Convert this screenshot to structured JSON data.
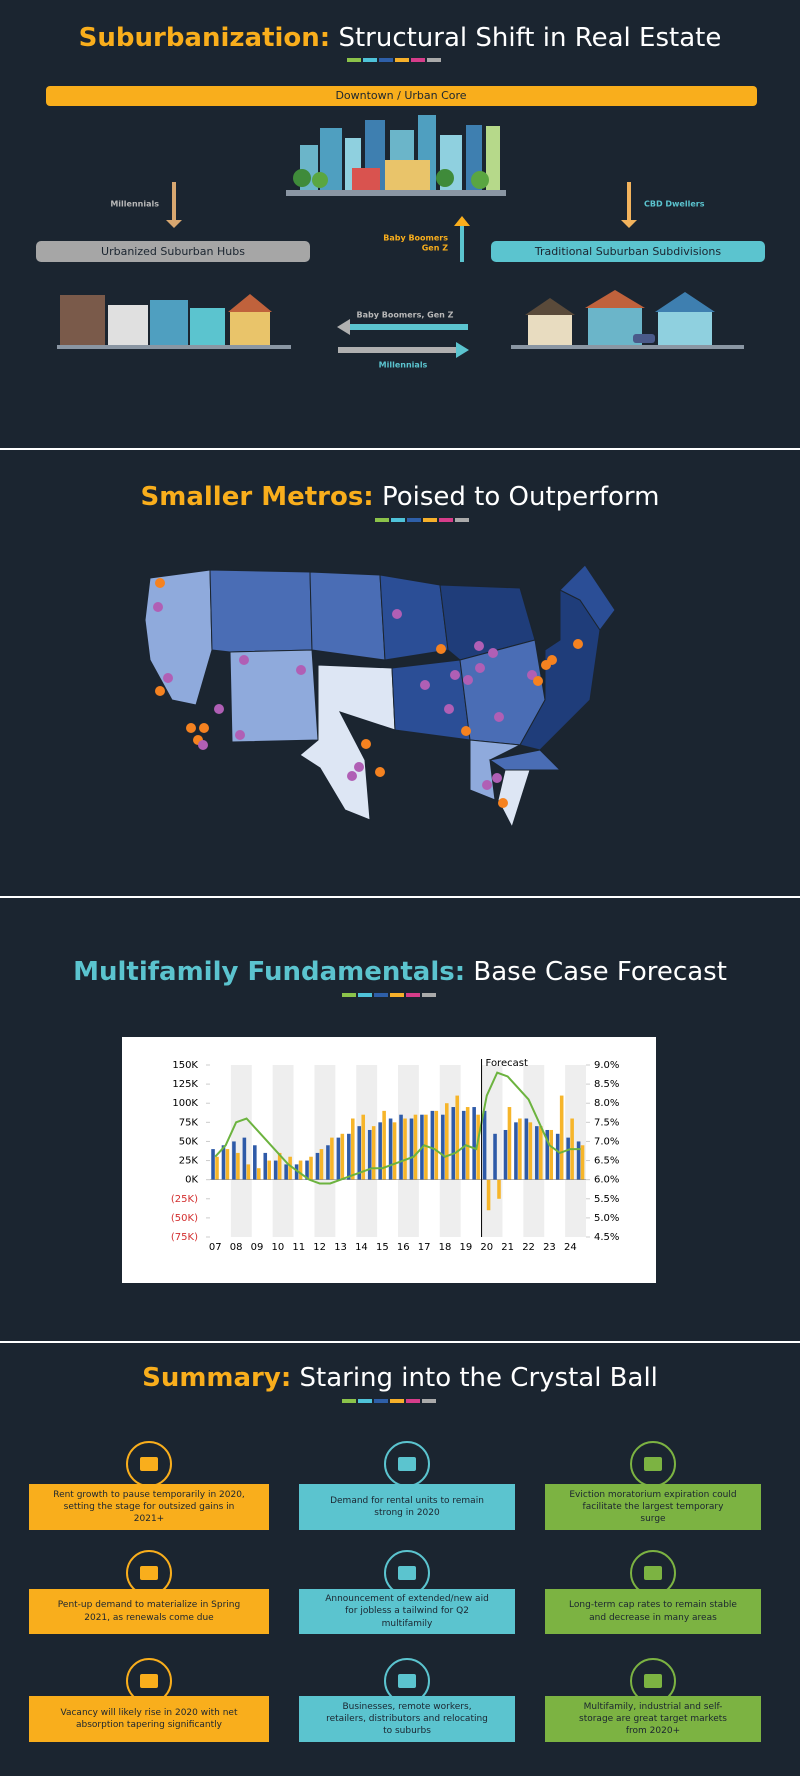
{
  "suburbanization": {
    "title_highlight": "Suburbanization:",
    "title_rest": "Structural Shift in Real Estate",
    "urban_core": "Downtown / Urban Core",
    "hubs": "Urbanized Suburban Hubs",
    "subdivisions": "Traditional Suburban Subdivisions",
    "flow_millennials_left": "Millennials",
    "flow_cbd": "CBD Dwellers",
    "flow_boomers": "Baby Boomers",
    "flow_genz": "Gen Z",
    "flow_boomers_genz": "Baby Boomers, Gen Z",
    "flow_millennials_right": "Millennials"
  },
  "metros": {
    "title_highlight": "Smaller Metros:",
    "title_rest": "Poised to Outperform"
  },
  "multifamily": {
    "title_highlight": "Multifamily Fundamentals:",
    "title_rest": "Base Case Forecast"
  },
  "chart_data": {
    "type": "bar",
    "categories": [
      "07",
      null,
      "08",
      null,
      "09",
      null,
      "10",
      null,
      "11",
      null,
      "12",
      null,
      "13",
      null,
      "14",
      null,
      "15",
      null,
      "16",
      null,
      "17",
      null,
      "18",
      null,
      "19",
      null,
      "20",
      null,
      "21",
      null,
      "22",
      null,
      "23",
      null,
      "24",
      null
    ],
    "series": [
      {
        "color": "#2e5aa8",
        "values": [
          40000,
          45000,
          50000,
          55000,
          45000,
          35000,
          25000,
          20000,
          20000,
          25000,
          35000,
          45000,
          55000,
          60000,
          70000,
          65000,
          75000,
          80000,
          85000,
          80000,
          85000,
          90000,
          85000,
          95000,
          90000,
          95000,
          90000,
          60000,
          65000,
          75000,
          80000,
          70000,
          65000,
          60000,
          55000,
          50000
        ]
      },
      {
        "color": "#f6b52a",
        "values": [
          30000,
          40000,
          35000,
          20000,
          15000,
          25000,
          35000,
          30000,
          25000,
          30000,
          40000,
          55000,
          60000,
          80000,
          85000,
          70000,
          90000,
          75000,
          80000,
          85000,
          85000,
          90000,
          100000,
          110000,
          95000,
          85000,
          -40000,
          -25000,
          95000,
          80000,
          75000,
          70000,
          65000,
          110000,
          80000,
          45000
        ]
      },
      {
        "type": "line",
        "axis": "y2",
        "color": "#6cb33f",
        "values": [
          6.6,
          6.9,
          7.5,
          7.6,
          7.3,
          7.0,
          6.7,
          6.4,
          6.2,
          6.0,
          5.9,
          5.9,
          6.0,
          6.1,
          6.2,
          6.3,
          6.3,
          6.4,
          6.5,
          6.6,
          6.9,
          6.8,
          6.6,
          6.7,
          6.9,
          6.8,
          8.2,
          8.8,
          8.7,
          8.4,
          8.1,
          7.5,
          6.9,
          6.7,
          6.8,
          6.8
        ]
      }
    ],
    "ylim": [
      -75000,
      150000
    ],
    "yticks": [
      {
        "value": 150000,
        "label": "150K"
      },
      {
        "value": 125000,
        "label": "125K"
      },
      {
        "value": 100000,
        "label": "100K"
      },
      {
        "value": 75000,
        "label": "75K"
      },
      {
        "value": 50000,
        "label": "50K"
      },
      {
        "value": 25000,
        "label": "25K"
      },
      {
        "value": 0,
        "label": "0K"
      },
      {
        "value": -25000,
        "label": "(25K)"
      },
      {
        "value": -50000,
        "label": "(50K)"
      },
      {
        "value": -75000,
        "label": "(75K)"
      }
    ],
    "negative_tick_color": "#d32f2f",
    "y2lim": [
      4.5,
      9
    ],
    "y2ticks": [
      {
        "value": 9,
        "label": "9.0%"
      },
      {
        "value": 8.5,
        "label": "8.5%"
      },
      {
        "value": 8,
        "label": "8.0%"
      },
      {
        "value": 7.5,
        "label": "7.5%"
      },
      {
        "value": 7,
        "label": "7.0%"
      },
      {
        "value": 6.5,
        "label": "6.5%"
      },
      {
        "value": 6,
        "label": "6.0%"
      },
      {
        "value": 5.5,
        "label": "5.5%"
      },
      {
        "value": 5,
        "label": "5.0%"
      },
      {
        "value": 4.5,
        "label": "4.5%"
      }
    ],
    "annotations": [
      {
        "text": "Forecast",
        "x": "20"
      }
    ]
  },
  "summary": {
    "title_highlight": "Summary:",
    "title_rest": "Staring into the Crystal Ball",
    "items": [
      "Rent growth to pause temporarily in 2020, setting the stage for outsized gains in 2021+",
      "Demand for rental units to remain strong in 2020",
      "Eviction moratorium expiration could facilitate the largest temporary surge",
      "Pent-up demand to materialize in Spring 2021, as renewals come due",
      "Announcement of extended/new aid for jobless a tailwind for Q2 multifamily",
      "Long-term cap rates to remain stable and decrease in many areas",
      "Vacancy will likely rise in 2020 with net absorption tapering significantly",
      "Businesses, remote workers, retailers, distributors and relocating to suburbs",
      "Multifamily, industrial and self-storage are great target markets from 2020+"
    ]
  }
}
